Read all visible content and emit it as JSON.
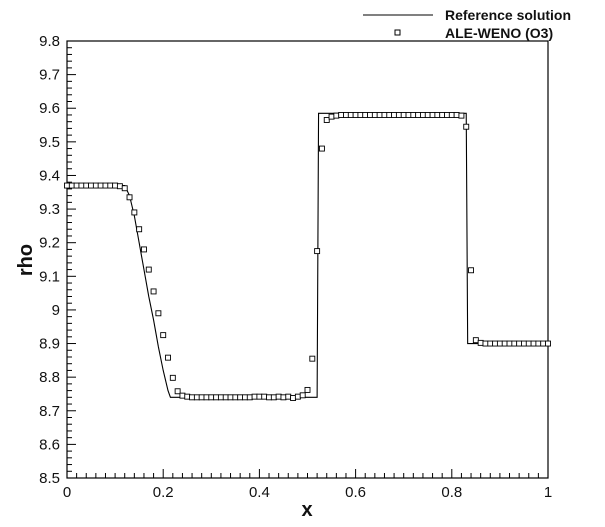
{
  "chart_data": {
    "type": "line",
    "title": "",
    "xlabel": "x",
    "ylabel": "rho",
    "xlim": [
      0,
      1
    ],
    "ylim": [
      8.5,
      9.8
    ],
    "x_ticks": [
      "0",
      "0.2",
      "0.4",
      "0.6",
      "0.8",
      "1"
    ],
    "y_ticks": [
      "8.5",
      "8.6",
      "8.7",
      "8.8",
      "8.9",
      "9",
      "9.1",
      "9.2",
      "9.3",
      "9.4",
      "9.5",
      "9.6",
      "9.7",
      "9.8"
    ],
    "grid": false,
    "legend": "top-right",
    "series": [
      {
        "name": "Reference solution",
        "style": "line",
        "color": "#000000",
        "x": [
          0,
          0.12,
          0.13,
          0.14,
          0.15,
          0.16,
          0.17,
          0.18,
          0.19,
          0.2,
          0.21,
          0.215,
          0.51,
          0.52,
          0.523,
          0.83,
          0.833,
          1
        ],
        "y": [
          9.37,
          9.37,
          9.34,
          9.28,
          9.2,
          9.12,
          9.04,
          8.97,
          8.89,
          8.82,
          8.76,
          8.74,
          8.74,
          8.74,
          9.585,
          9.585,
          8.9,
          8.9
        ]
      },
      {
        "name": "ALE-WENO (O3)",
        "style": "square-markers",
        "color": "#000000",
        "x": [
          0.0,
          0.01,
          0.02,
          0.03,
          0.04,
          0.05,
          0.06,
          0.07,
          0.08,
          0.09,
          0.1,
          0.11,
          0.12,
          0.13,
          0.14,
          0.15,
          0.16,
          0.17,
          0.18,
          0.19,
          0.2,
          0.21,
          0.22,
          0.23,
          0.24,
          0.25,
          0.26,
          0.27,
          0.28,
          0.29,
          0.3,
          0.31,
          0.32,
          0.33,
          0.34,
          0.35,
          0.36,
          0.37,
          0.38,
          0.39,
          0.4,
          0.41,
          0.42,
          0.43,
          0.44,
          0.45,
          0.46,
          0.47,
          0.48,
          0.49,
          0.5,
          0.51,
          0.52,
          0.53,
          0.54,
          0.55,
          0.56,
          0.57,
          0.58,
          0.59,
          0.6,
          0.61,
          0.62,
          0.63,
          0.64,
          0.65,
          0.66,
          0.67,
          0.68,
          0.69,
          0.7,
          0.71,
          0.72,
          0.73,
          0.74,
          0.75,
          0.76,
          0.77,
          0.78,
          0.79,
          0.8,
          0.81,
          0.82,
          0.83,
          0.84,
          0.85,
          0.86,
          0.87,
          0.88,
          0.89,
          0.9,
          0.91,
          0.92,
          0.93,
          0.94,
          0.95,
          0.96,
          0.97,
          0.98,
          0.99,
          1.0
        ],
        "y": [
          9.37,
          9.37,
          9.37,
          9.37,
          9.37,
          9.37,
          9.37,
          9.37,
          9.37,
          9.37,
          9.37,
          9.368,
          9.362,
          9.335,
          9.29,
          9.24,
          9.18,
          9.12,
          9.055,
          8.99,
          8.925,
          8.858,
          8.798,
          8.758,
          8.745,
          8.742,
          8.74,
          8.74,
          8.74,
          8.74,
          8.74,
          8.74,
          8.74,
          8.74,
          8.74,
          8.74,
          8.74,
          8.74,
          8.74,
          8.742,
          8.742,
          8.742,
          8.74,
          8.74,
          8.742,
          8.74,
          8.742,
          8.738,
          8.742,
          8.746,
          8.762,
          8.855,
          9.175,
          9.48,
          9.565,
          9.575,
          9.578,
          9.58,
          9.58,
          9.58,
          9.58,
          9.58,
          9.58,
          9.58,
          9.58,
          9.58,
          9.58,
          9.58,
          9.58,
          9.58,
          9.58,
          9.58,
          9.58,
          9.58,
          9.58,
          9.58,
          9.58,
          9.58,
          9.58,
          9.58,
          9.58,
          9.58,
          9.578,
          9.545,
          9.118,
          8.91,
          8.902,
          8.9,
          8.9,
          8.9,
          8.9,
          8.9,
          8.9,
          8.9,
          8.9,
          8.9,
          8.9,
          8.9,
          8.9,
          8.9,
          8.9
        ]
      }
    ]
  }
}
